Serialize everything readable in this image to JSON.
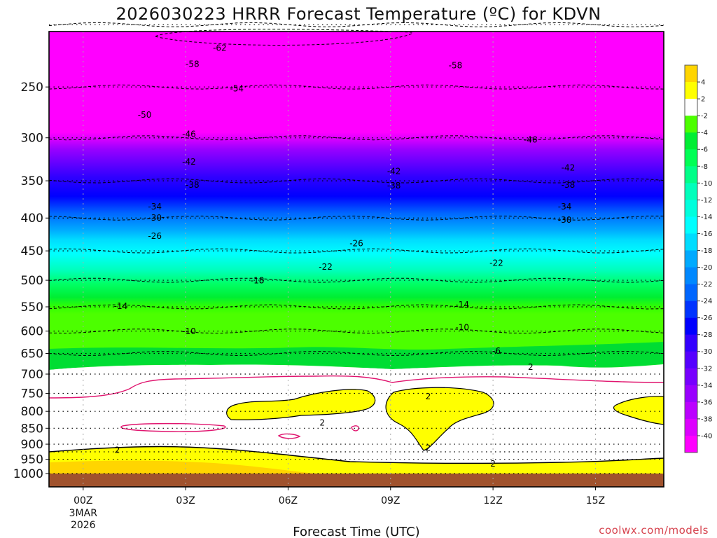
{
  "chart_data": {
    "type": "heatmap",
    "title": "2026030223 HRRR Forecast Temperature (ºC) for KDVN",
    "xlabel": "Forecast Time (UTC)",
    "credit": "coolwx.com/models",
    "x_ticks": [
      {
        "hour": 0,
        "label": "00Z",
        "sub": [
          "3MAR",
          "2026"
        ]
      },
      {
        "hour": 3,
        "label": "03Z"
      },
      {
        "hour": 6,
        "label": "06Z"
      },
      {
        "hour": 9,
        "label": "09Z"
      },
      {
        "hour": 12,
        "label": "12Z"
      },
      {
        "hour": 15,
        "label": "15Z"
      }
    ],
    "xlim": [
      -1,
      17
    ],
    "pressure_ticks": [
      250,
      300,
      350,
      400,
      450,
      500,
      550,
      600,
      650,
      700,
      750,
      800,
      850,
      900,
      950,
      1000
    ],
    "pressure_guides": [
      {
        "p": 1000,
        "t": 2
      },
      {
        "p": 950,
        "t": 3
      },
      {
        "p": 925,
        "t": 2
      },
      {
        "p": 900,
        "t": 0.5
      },
      {
        "p": 850,
        "t": -0.5
      },
      {
        "p": 800,
        "t": -0.5
      },
      {
        "p": 750,
        "t": -0.5
      },
      {
        "p": 700,
        "t": -0.5
      },
      {
        "p": 650,
        "t": -6
      },
      {
        "p": 600,
        "t": -9
      },
      {
        "p": 550,
        "t": -12
      },
      {
        "p": 500,
        "t": -17
      },
      {
        "p": 450,
        "t": -22
      },
      {
        "p": 400,
        "t": -29
      },
      {
        "p": 350,
        "t": -36
      },
      {
        "p": 300,
        "t": -46
      },
      {
        "p": 250,
        "t": -54
      },
      {
        "p": 200,
        "t": -62
      }
    ],
    "colorbar": {
      "labels": [
        "4",
        "2",
        "-2",
        "-4",
        "-6",
        "-8",
        "-10",
        "-12",
        "-14",
        "-16",
        "-18",
        "-20",
        "-22",
        "-24",
        "-26",
        "-28",
        "-30",
        "-32",
        "-34",
        "-36",
        "-38",
        "-40"
      ],
      "colors": [
        "#ffd500",
        "#ffff00",
        "#ffffff",
        "#4cff00",
        "#00ee33",
        "#00ff55",
        "#00ff88",
        "#00ffbb",
        "#00ffdd",
        "#00ffff",
        "#00ddff",
        "#00aaff",
        "#0088ff",
        "#0066ff",
        "#0033ff",
        "#0000ff",
        "#3300ff",
        "#5500ff",
        "#7700ff",
        "#9900ff",
        "#bb00ff",
        "#dd00ff",
        "#ff00ff"
      ]
    },
    "contour_labels": [
      {
        "hour": 4.0,
        "p": 218,
        "text": "-62"
      },
      {
        "hour": 3.2,
        "p": 231,
        "text": "-58"
      },
      {
        "hour": 10.9,
        "p": 232,
        "text": "-58"
      },
      {
        "hour": 4.5,
        "p": 252,
        "text": "-54"
      },
      {
        "hour": 1.8,
        "p": 277,
        "text": "-50"
      },
      {
        "hour": 3.1,
        "p": 297,
        "text": "-46"
      },
      {
        "hour": 13.1,
        "p": 303,
        "text": "-46"
      },
      {
        "hour": 3.1,
        "p": 328,
        "text": "-42"
      },
      {
        "hour": 9.1,
        "p": 339,
        "text": "-42"
      },
      {
        "hour": 14.2,
        "p": 335,
        "text": "-42"
      },
      {
        "hour": 3.2,
        "p": 356,
        "text": "-38"
      },
      {
        "hour": 9.1,
        "p": 357,
        "text": "-38"
      },
      {
        "hour": 14.2,
        "p": 356,
        "text": "-38"
      },
      {
        "hour": 2.1,
        "p": 385,
        "text": "-34"
      },
      {
        "hour": 14.1,
        "p": 385,
        "text": "-34"
      },
      {
        "hour": 2.1,
        "p": 401,
        "text": "-30"
      },
      {
        "hour": 14.1,
        "p": 404,
        "text": "-30"
      },
      {
        "hour": 2.1,
        "p": 428,
        "text": "-26"
      },
      {
        "hour": 8.0,
        "p": 439,
        "text": "-26"
      },
      {
        "hour": 7.1,
        "p": 478,
        "text": "-22"
      },
      {
        "hour": 12.1,
        "p": 471,
        "text": "-22"
      },
      {
        "hour": 5.1,
        "p": 502,
        "text": "-18"
      },
      {
        "hour": 1.1,
        "p": 550,
        "text": "-14"
      },
      {
        "hour": 11.1,
        "p": 547,
        "text": "-14"
      },
      {
        "hour": 3.1,
        "p": 602,
        "text": "-10"
      },
      {
        "hour": 11.1,
        "p": 594,
        "text": "-10"
      },
      {
        "hour": 12.1,
        "p": 646,
        "text": "-6"
      },
      {
        "hour": 13.1,
        "p": 684,
        "text": "2"
      },
      {
        "hour": 10.1,
        "p": 760,
        "text": "2"
      },
      {
        "hour": 7.0,
        "p": 836,
        "text": "2"
      },
      {
        "hour": 10.1,
        "p": 915,
        "text": "2"
      },
      {
        "hour": 1.0,
        "p": 922,
        "text": "2"
      },
      {
        "hour": 12.0,
        "p": 968,
        "text": "2"
      }
    ]
  }
}
